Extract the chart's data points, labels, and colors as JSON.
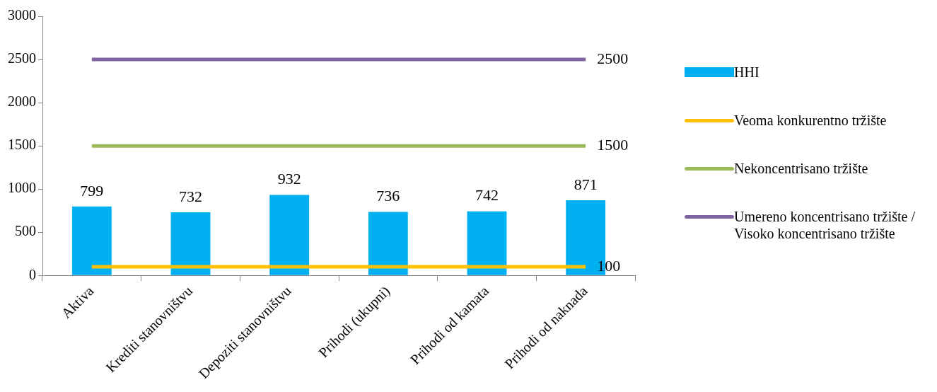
{
  "chart_data": {
    "type": "bar",
    "categories": [
      "Aktiva",
      "Krediti stanovništvu",
      "Depoziti stanovništvu",
      "Prihodi (ukupni)",
      "Prihodi od kamata",
      "Prihodi od naknada"
    ],
    "series": [
      {
        "name": "HHI",
        "color": "#00b0f0",
        "values": [
          799,
          732,
          932,
          736,
          742,
          871
        ],
        "value_labels": [
          "799",
          "732",
          "932",
          "736",
          "742",
          "871"
        ]
      },
      {
        "name": "Veoma konkurentno tržište",
        "type": "line",
        "color": "#ffc000",
        "values": [
          100,
          100,
          100,
          100,
          100,
          100
        ],
        "value_labels": [
          null,
          null,
          null,
          null,
          null,
          "100"
        ]
      },
      {
        "name": "Nekoncentrisano tržište",
        "type": "line",
        "color": "#9bbb59",
        "values": [
          1500,
          1500,
          1500,
          1500,
          1500,
          1500
        ],
        "value_labels": [
          null,
          null,
          null,
          null,
          null,
          "1500"
        ]
      },
      {
        "name": "Umereno koncentrisano tržište / Visoko koncentrisano tržište",
        "type": "line",
        "color": "#8064a2",
        "values": [
          2500,
          2500,
          2500,
          2500,
          2500,
          2500
        ],
        "value_labels": [
          null,
          null,
          null,
          null,
          null,
          "2500"
        ]
      }
    ],
    "ylim": [
      0,
      3000
    ],
    "yticks": [
      0,
      500,
      1000,
      1500,
      2000,
      2500,
      3000
    ],
    "grid": false,
    "legend": "right",
    "marker": "none"
  }
}
